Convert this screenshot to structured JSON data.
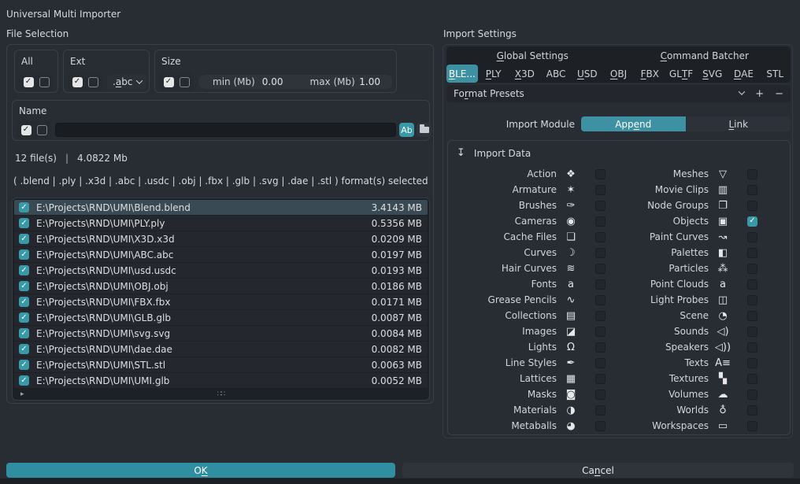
{
  "window": {
    "title": "Universal Multi Importer"
  },
  "icons": {
    "check": "✓",
    "import_data": "↧",
    "expand": "▸",
    "grip": "∷∷",
    "add": "+",
    "remove": "−",
    "case_toggle": "Ab"
  },
  "file_selection": {
    "section_label": "File Selection",
    "filters": {
      "all": {
        "label": "All"
      },
      "ext": {
        "label": "Ext",
        "dropdown": {
          "text": ".abc",
          "u": 1
        }
      },
      "size": {
        "label": "Size",
        "min_label": "min (Mb)",
        "min_value": "0.00",
        "max_label": "max (Mb)",
        "max_value": "1.00"
      },
      "name": {
        "label": "Name",
        "input_value": ""
      }
    },
    "stats": {
      "count": "12 file(s)",
      "separator": "|",
      "total": "4.0822 Mb"
    },
    "formats_line": "( .blend | .ply | .x3d | .abc | .usdc | .obj | .fbx | .glb | .svg | .dae | .stl ) format(s) selected",
    "files": [
      {
        "path": "E:\\Projects\\RND\\UMI\\Blend.blend",
        "size": "3.4143 MB",
        "checked": true,
        "selected": true
      },
      {
        "path": "E:\\Projects\\RND\\UMI\\PLY.ply",
        "size": "0.5356 MB",
        "checked": true,
        "selected": false
      },
      {
        "path": "E:\\Projects\\RND\\UMI\\X3D.x3d",
        "size": "0.0209 MB",
        "checked": true,
        "selected": false
      },
      {
        "path": "E:\\Projects\\RND\\UMI\\ABC.abc",
        "size": "0.0197 MB",
        "checked": true,
        "selected": false
      },
      {
        "path": "E:\\Projects\\RND\\UMI\\usd.usdc",
        "size": "0.0193 MB",
        "checked": true,
        "selected": false
      },
      {
        "path": "E:\\Projects\\RND\\UMI\\OBJ.obj",
        "size": "0.0186 MB",
        "checked": true,
        "selected": false
      },
      {
        "path": "E:\\Projects\\RND\\UMI\\FBX.fbx",
        "size": "0.0171 MB",
        "checked": true,
        "selected": false
      },
      {
        "path": "E:\\Projects\\RND\\UMI\\GLB.glb",
        "size": "0.0087 MB",
        "checked": true,
        "selected": false
      },
      {
        "path": "E:\\Projects\\RND\\UMI\\svg.svg",
        "size": "0.0084 MB",
        "checked": true,
        "selected": false
      },
      {
        "path": "E:\\Projects\\RND\\UMI\\dae.dae",
        "size": "0.0082 MB",
        "checked": true,
        "selected": false
      },
      {
        "path": "E:\\Projects\\RND\\UMI\\STL.stl",
        "size": "0.0063 MB",
        "checked": true,
        "selected": false
      },
      {
        "path": "E:\\Projects\\RND\\UMI\\UMI.glb",
        "size": "0.0052 MB",
        "checked": true,
        "selected": false
      }
    ]
  },
  "import_settings": {
    "section_label": "Import Settings",
    "tab_groups": [
      {
        "text": "Global Settings",
        "u": 0
      },
      {
        "text": "Command Batcher",
        "u": 0
      }
    ],
    "format_tabs": [
      {
        "text": "BLE...",
        "u": 0,
        "active": true
      },
      {
        "text": "PLY",
        "u": 0,
        "active": false
      },
      {
        "text": "X3D",
        "u": 0,
        "active": false
      },
      {
        "text": "ABC",
        "u": null,
        "active": false
      },
      {
        "text": "USD",
        "u": 0,
        "active": false
      },
      {
        "text": "OBJ",
        "u": 0,
        "active": false
      },
      {
        "text": "FBX",
        "u": 0,
        "active": false
      },
      {
        "text": "GLTF",
        "u": 2,
        "active": false
      },
      {
        "text": "SVG",
        "u": 0,
        "active": false
      },
      {
        "text": "DAE",
        "u": 0,
        "active": false
      },
      {
        "text": "STL",
        "u": null,
        "active": false
      }
    ],
    "presets": {
      "label": {
        "text": "Format Presets",
        "u": 2
      }
    },
    "import_module": {
      "label": "Import Module",
      "options": [
        {
          "text": "Append",
          "u": 3,
          "active": true
        },
        {
          "text": "Link",
          "u": 0,
          "active": false
        }
      ]
    },
    "import_data": {
      "title": "Import Data",
      "items_left": [
        {
          "label": "Action",
          "icon": "action-icon",
          "glyph": "❖",
          "checked": false
        },
        {
          "label": "Armature",
          "icon": "armature-icon",
          "glyph": "✶",
          "checked": false
        },
        {
          "label": "Brushes",
          "icon": "brush-icon",
          "glyph": "✑",
          "checked": false
        },
        {
          "label": "Cameras",
          "icon": "camera-icon",
          "glyph": "◉",
          "checked": false
        },
        {
          "label": "Cache Files",
          "icon": "cache-file-icon",
          "glyph": "❏",
          "checked": false
        },
        {
          "label": "Curves",
          "icon": "curve-icon",
          "glyph": "☽",
          "checked": false
        },
        {
          "label": "Hair Curves",
          "icon": "hair-curves-icon",
          "glyph": "≋",
          "checked": false
        },
        {
          "label": "Fonts",
          "icon": "font-icon",
          "glyph": "a",
          "checked": false
        },
        {
          "label": "Grease Pencils",
          "icon": "grease-pencil-icon",
          "glyph": "∿",
          "checked": false
        },
        {
          "label": "Collections",
          "icon": "collection-icon",
          "glyph": "▤",
          "checked": false
        },
        {
          "label": "Images",
          "icon": "image-icon",
          "glyph": "◪",
          "checked": false
        },
        {
          "label": "Lights",
          "icon": "light-icon",
          "glyph": "Ω",
          "checked": false
        },
        {
          "label": "Line Styles",
          "icon": "line-style-icon",
          "glyph": "✒",
          "checked": false
        },
        {
          "label": "Lattices",
          "icon": "lattice-icon",
          "glyph": "▦",
          "checked": false
        },
        {
          "label": "Masks",
          "icon": "mask-icon",
          "glyph": "◙",
          "checked": false
        },
        {
          "label": "Materials",
          "icon": "material-icon",
          "glyph": "◑",
          "checked": false
        },
        {
          "label": "Metaballs",
          "icon": "metaball-icon",
          "glyph": "◕",
          "checked": false
        }
      ],
      "items_right": [
        {
          "label": "Meshes",
          "icon": "mesh-icon",
          "glyph": "▽",
          "checked": false
        },
        {
          "label": "Movie Clips",
          "icon": "movie-clip-icon",
          "glyph": "▥",
          "checked": false
        },
        {
          "label": "Node Groups",
          "icon": "node-group-icon",
          "glyph": "❐",
          "checked": false
        },
        {
          "label": "Objects",
          "icon": "object-icon",
          "glyph": "▣",
          "checked": true
        },
        {
          "label": "Paint Curves",
          "icon": "paint-curve-icon",
          "glyph": "↝",
          "checked": false
        },
        {
          "label": "Palettes",
          "icon": "palette-icon",
          "glyph": "◧",
          "checked": false
        },
        {
          "label": "Particles",
          "icon": "particles-icon",
          "glyph": "⁂",
          "checked": false
        },
        {
          "label": "Point Clouds",
          "icon": "point-cloud-icon",
          "glyph": "a",
          "checked": false
        },
        {
          "label": "Light Probes",
          "icon": "light-probe-icon",
          "glyph": "◫",
          "checked": false
        },
        {
          "label": "Scene",
          "icon": "scene-icon",
          "glyph": "◔",
          "checked": false
        },
        {
          "label": "Sounds",
          "icon": "sound-icon",
          "glyph": "◁)",
          "checked": false
        },
        {
          "label": "Speakers",
          "icon": "speaker-icon",
          "glyph": "◁))",
          "checked": false
        },
        {
          "label": "Texts",
          "icon": "text-icon",
          "glyph": "A≡",
          "checked": false
        },
        {
          "label": "Textures",
          "icon": "texture-icon",
          "glyph": "▚",
          "checked": false
        },
        {
          "label": "Volumes",
          "icon": "volume-icon",
          "glyph": "☁",
          "checked": false
        },
        {
          "label": "Worlds",
          "icon": "world-icon",
          "glyph": "♁",
          "checked": false
        },
        {
          "label": "Workspaces",
          "icon": "workspace-icon",
          "glyph": "▭",
          "checked": false
        }
      ]
    }
  },
  "footer": {
    "ok": {
      "text": "OK",
      "u": 1
    },
    "cancel": {
      "text": "Cancel",
      "u": 2
    }
  }
}
